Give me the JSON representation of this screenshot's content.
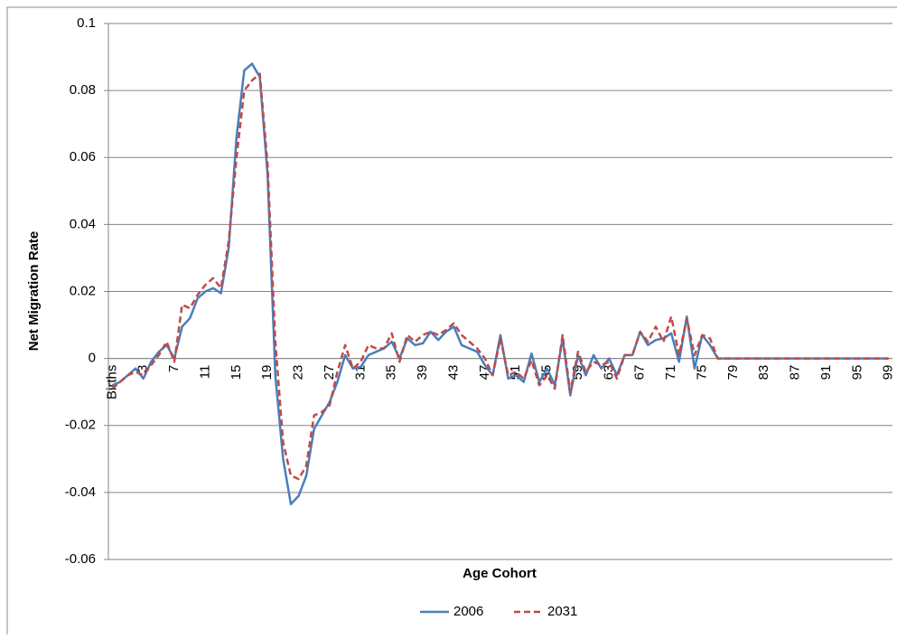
{
  "chart_data": {
    "type": "line",
    "y_label": "Net Migration  Rate",
    "x_label": "Age Cohort",
    "categories": [
      "Births",
      null,
      null,
      null,
      "3",
      null,
      null,
      null,
      "7",
      null,
      null,
      null,
      "11",
      null,
      null,
      null,
      "15",
      null,
      null,
      null,
      "19",
      null,
      null,
      null,
      "23",
      null,
      null,
      null,
      "27",
      null,
      null,
      null,
      "31",
      null,
      null,
      null,
      "35",
      null,
      null,
      null,
      "39",
      null,
      null,
      null,
      "43",
      null,
      null,
      null,
      "47",
      null,
      null,
      null,
      "51",
      null,
      null,
      null,
      "55",
      null,
      null,
      null,
      "59",
      null,
      null,
      null,
      "63",
      null,
      null,
      null,
      "67",
      null,
      null,
      null,
      "71",
      null,
      null,
      null,
      "75",
      null,
      null,
      null,
      "79",
      null,
      null,
      null,
      "83",
      null,
      null,
      null,
      "87",
      null,
      null,
      null,
      "91",
      null,
      null,
      null,
      "95",
      null,
      null,
      null,
      "99"
    ],
    "series": [
      {
        "name": "2006",
        "color": "#4a7ebb",
        "dash": false,
        "values": [
          -0.008,
          -0.007,
          -0.005,
          -0.003,
          -0.006,
          -0.001,
          0.002,
          0.004,
          0,
          0.0095,
          0.012,
          0.018,
          0.02,
          0.021,
          0.0195,
          0.033,
          0.066,
          0.086,
          0.088,
          0.084,
          0.055,
          -0.005,
          -0.03,
          -0.0435,
          -0.041,
          -0.035,
          -0.021,
          -0.017,
          -0.013,
          -0.007,
          0.001,
          -0.003,
          -0.0025,
          0.001,
          0.002,
          0.003,
          0.005,
          0,
          0.006,
          0.004,
          0.0045,
          0.008,
          0.0055,
          0.008,
          0.0095,
          0.004,
          0.003,
          0.002,
          -0.002,
          -0.005,
          0.007,
          -0.006,
          -0.005,
          -0.007,
          0.0015,
          -0.007,
          -0.003,
          -0.008,
          0.006,
          -0.011,
          0.001,
          -0.005,
          0.001,
          -0.003,
          0,
          -0.005,
          0.001,
          0.001,
          0.008,
          0.004,
          0.0055,
          0.006,
          0.0075,
          -0.001,
          0.0125,
          -0.003,
          0.007,
          0.004,
          0,
          0,
          0,
          0,
          0,
          0,
          0,
          0,
          0,
          0,
          0,
          0,
          0,
          0,
          0,
          0,
          0,
          0,
          0,
          0,
          0,
          0,
          0
        ]
      },
      {
        "name": "2031",
        "color": "#be4b48",
        "dash": true,
        "values": [
          -0.009,
          -0.007,
          -0.005,
          -0.004,
          -0.005,
          -0.002,
          0.001,
          0.005,
          -0.001,
          0.016,
          0.015,
          0.019,
          0.022,
          0.024,
          0.021,
          0.035,
          0.06,
          0.08,
          0.083,
          0.085,
          0.058,
          0.005,
          -0.025,
          -0.035,
          -0.036,
          -0.032,
          -0.017,
          -0.016,
          -0.014,
          -0.004,
          0.004,
          -0.003,
          -0.001,
          0.004,
          0.003,
          0.003,
          0.0075,
          -0.001,
          0.007,
          0.005,
          0.007,
          0.008,
          0.007,
          0.0085,
          0.0105,
          0.007,
          0.005,
          0.003,
          0,
          -0.005,
          0.006,
          -0.005,
          -0.004,
          -0.006,
          -0.0005,
          -0.008,
          -0.005,
          -0.009,
          0.007,
          -0.01,
          0.002,
          -0.004,
          -0.001,
          -0.002,
          -0.001,
          -0.006,
          0.001,
          0.001,
          0.008,
          0.005,
          0.0095,
          0.005,
          0.0125,
          0.001,
          0.012,
          0.001,
          0.007,
          0.006,
          0,
          0,
          0,
          0,
          0,
          0,
          0,
          0,
          0,
          0,
          0,
          0,
          0,
          0,
          0,
          0,
          0,
          0,
          0,
          0,
          0,
          0,
          0
        ]
      }
    ],
    "ylim": [
      -0.06,
      0.1
    ],
    "yticks": [
      -0.06,
      -0.04,
      -0.02,
      0,
      0.02,
      0.04,
      0.06,
      0.08,
      0.1
    ],
    "grid": true,
    "legend": "bottom"
  }
}
